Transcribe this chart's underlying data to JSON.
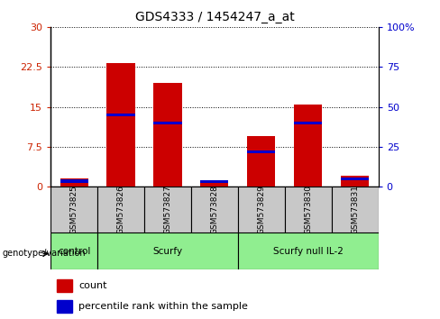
{
  "title": "GDS4333 / 1454247_a_at",
  "samples": [
    "GSM573825",
    "GSM573826",
    "GSM573827",
    "GSM573828",
    "GSM573829",
    "GSM573830",
    "GSM573831"
  ],
  "count_values": [
    1.5,
    23.2,
    19.5,
    1.0,
    9.5,
    15.5,
    2.0
  ],
  "percentile_values": [
    3.5,
    45.0,
    40.0,
    3.0,
    22.0,
    40.0,
    5.0
  ],
  "left_ylim": [
    0,
    30
  ],
  "right_ylim": [
    0,
    100
  ],
  "left_yticks": [
    0,
    7.5,
    15,
    22.5,
    30
  ],
  "right_yticks": [
    0,
    25,
    50,
    75,
    100
  ],
  "left_ytick_labels": [
    "0",
    "7.5",
    "15",
    "22.5",
    "30"
  ],
  "right_ytick_labels": [
    "0",
    "25",
    "50",
    "75",
    "100%"
  ],
  "bar_color": "#cc0000",
  "percentile_color": "#0000cc",
  "bar_width": 0.6,
  "group_info": [
    {
      "label": "control",
      "start": 0,
      "end": 0
    },
    {
      "label": "Scurfy",
      "start": 1,
      "end": 3
    },
    {
      "label": "Scurfy null IL-2",
      "start": 4,
      "end": 6
    }
  ],
  "group_color": "#90ee90",
  "sample_box_color": "#c8c8c8",
  "xlabel_genotype": "genotype/variation",
  "legend_count_label": "count",
  "legend_percentile_label": "percentile rank within the sample",
  "tick_label_color_left": "#cc2200",
  "tick_label_color_right": "#0000cc",
  "bg_color": "#ffffff"
}
